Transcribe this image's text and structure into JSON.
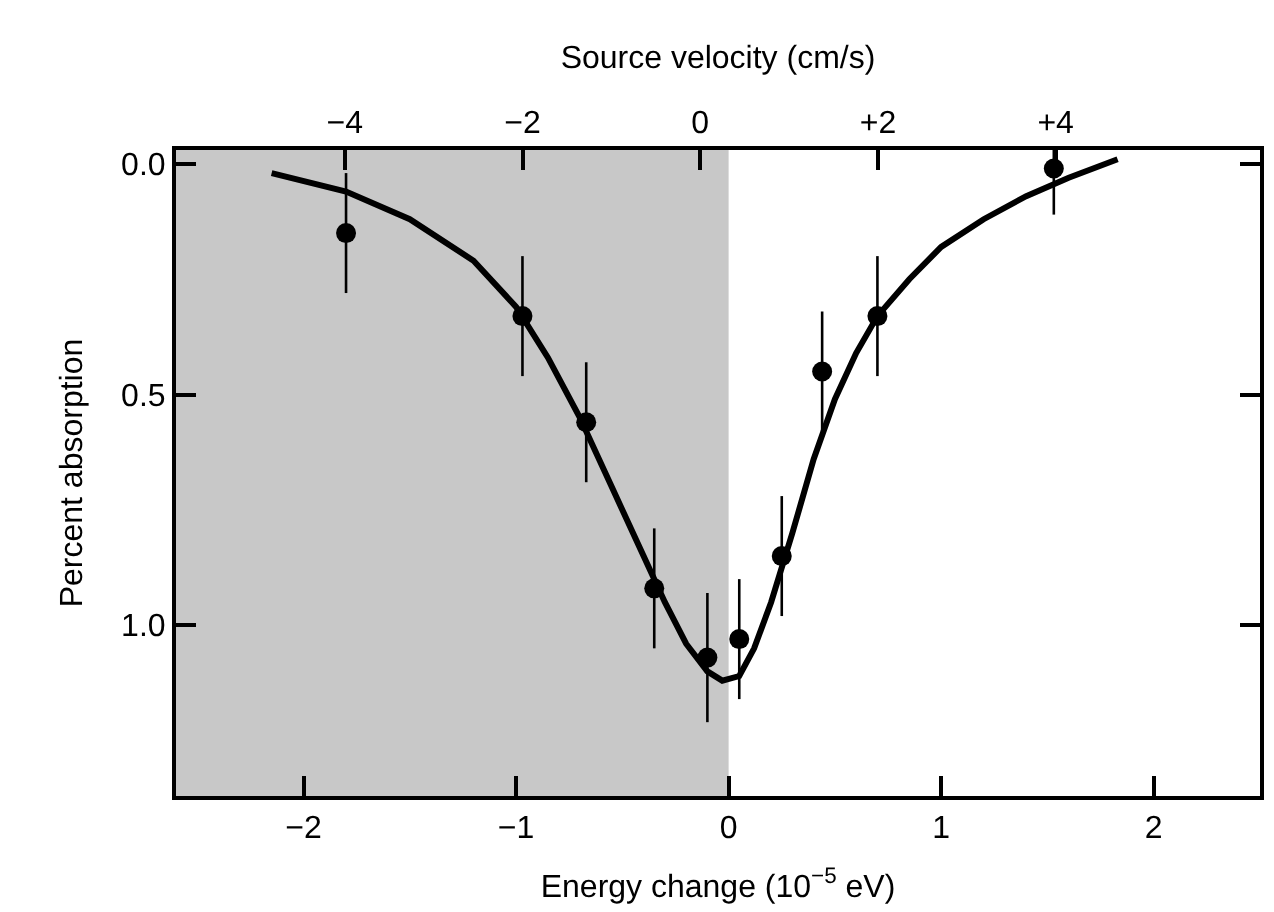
{
  "chart_data": {
    "type": "scatter",
    "xlabel": "Energy change (10$^{−5}$ eV)",
    "ylabel": "Percent absorption",
    "x2label": "Source velocity (cm/s)",
    "xlim": [
      -2.6,
      2.5
    ],
    "xticks": [
      {
        "value": -2,
        "label": "−2"
      },
      {
        "value": -1,
        "label": "−1"
      },
      0,
      1,
      2
    ],
    "x2lim": [
      -5.9,
      6.3
    ],
    "x2ticks": [
      {
        "value": -4,
        "label": "−4"
      },
      {
        "value": -2,
        "label": "−2"
      },
      0,
      {
        "value": 2,
        "label": "+2"
      },
      {
        "value": 4,
        "label": "+4"
      }
    ],
    "ylim": [
      1.37,
      -0.03
    ],
    "yticks": [
      {
        "value": 0,
        "label": "0.0"
      },
      {
        "value": 0.5,
        "label": "0.5"
      },
      {
        "value": 1,
        "label": "1.0"
      }
    ],
    "grid": false,
    "marker": "circle",
    "bands": [
      {
        "axis": "x",
        "from": -2.6,
        "to": 0,
        "color": "#c8c8c8"
      }
    ],
    "series": [
      {
        "color": "#000000",
        "x": [
          -1.8,
          -0.97,
          -0.67,
          -0.35,
          -0.1,
          0.05,
          0.25,
          0.44,
          0.7,
          1.53
        ],
        "values": [
          0.15,
          0.33,
          0.56,
          0.92,
          1.07,
          1.03,
          0.85,
          0.45,
          0.33,
          0.01
        ],
        "errors": [
          0.13,
          0.13,
          0.13,
          0.13,
          0.14,
          0.13,
          0.13,
          0.13,
          0.13,
          0.1
        ]
      },
      {
        "type": "line",
        "color": "#000000",
        "marker": "none",
        "x": [
          -2.15,
          -1.8,
          -1.5,
          -1.2,
          -1.0,
          -0.85,
          -0.7,
          -0.55,
          -0.4,
          -0.3,
          -0.2,
          -0.1,
          -0.03,
          0.05,
          0.12,
          0.2,
          0.3,
          0.4,
          0.5,
          0.6,
          0.7,
          0.85,
          1.0,
          1.2,
          1.4,
          1.6,
          1.83
        ],
        "values": [
          0.02,
          0.06,
          0.12,
          0.21,
          0.31,
          0.42,
          0.55,
          0.7,
          0.85,
          0.95,
          1.04,
          1.1,
          1.12,
          1.11,
          1.05,
          0.95,
          0.8,
          0.64,
          0.51,
          0.41,
          0.33,
          0.25,
          0.18,
          0.12,
          0.07,
          0.03,
          -0.01
        ]
      }
    ]
  }
}
